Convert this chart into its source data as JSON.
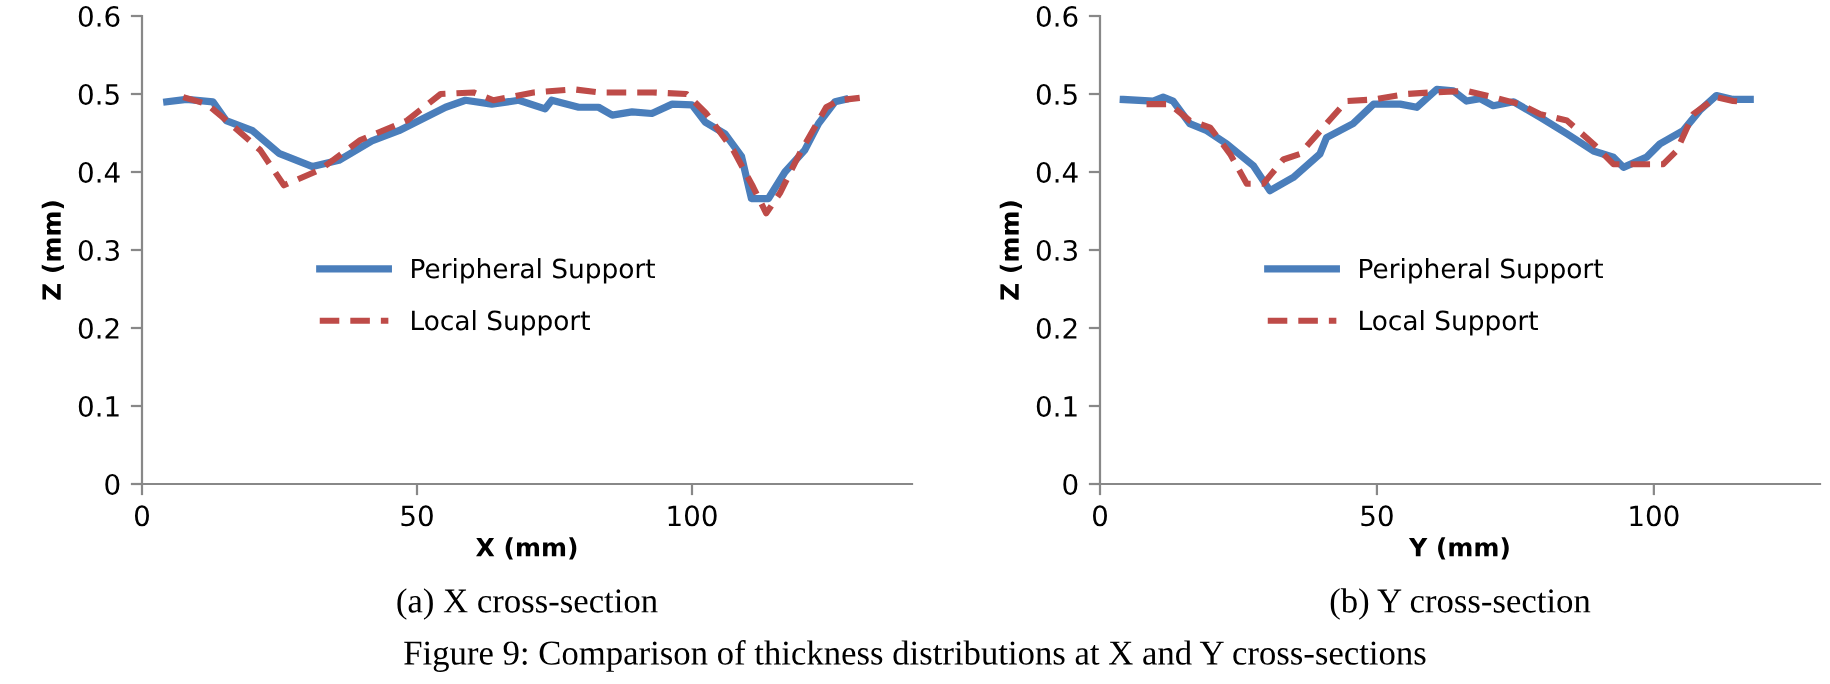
{
  "chart_data": [
    {
      "type": "line",
      "xlabel": "X (mm)",
      "ylabel": "Z (mm)",
      "xlim": [
        0,
        140
      ],
      "xticks": [
        0,
        50,
        100
      ],
      "ylim": [
        0,
        0.6
      ],
      "yticks": [
        0,
        0.1,
        0.2,
        0.3,
        0.4,
        0.5,
        0.6
      ],
      "grid": false,
      "legend": "left",
      "marker": "none",
      "annotations": [
        "(a) X cross-section",
        "Figure 9: Comparison of thickness distributions at X and Y cross-sections"
      ],
      "series": [
        {
          "name": "Peripheral Support",
          "color": "#4a7ebb",
          "line_style": "solid",
          "x": [
            4.5,
            8.1,
            12.9,
            15.3,
            20.1,
            24.9,
            31,
            35.8,
            41.8,
            46.7,
            55.2,
            58.8,
            63.6,
            68.5,
            73.3,
            74.5,
            79.4,
            83,
            85.5,
            89.1,
            92.7,
            96.4,
            100,
            102.4,
            106,
            109,
            110.8,
            113.9,
            116.9,
            120.5,
            123,
            126,
            127.8
          ],
          "values": [
            0.49,
            0.493,
            0.49,
            0.466,
            0.453,
            0.424,
            0.407,
            0.415,
            0.44,
            0.453,
            0.483,
            0.492,
            0.487,
            0.492,
            0.481,
            0.492,
            0.483,
            0.483,
            0.473,
            0.477,
            0.475,
            0.487,
            0.486,
            0.464,
            0.449,
            0.42,
            0.366,
            0.366,
            0.4,
            0.428,
            0.462,
            0.49,
            0.493
          ]
        },
        {
          "name": "Local Support",
          "color": "#be4b48",
          "line_style": "dashed",
          "x": [
            7.5,
            11.8,
            16.7,
            21.5,
            25.8,
            32.4,
            39.7,
            48.2,
            54.3,
            60.3,
            63.9,
            71.2,
            78.5,
            83.3,
            92.9,
            99,
            102.6,
            107.5,
            111.1,
            113.5,
            116,
            119.6,
            124.4,
            126.8,
            130.5
          ],
          "values": [
            0.496,
            0.487,
            0.458,
            0.428,
            0.383,
            0.403,
            0.441,
            0.466,
            0.5,
            0.502,
            0.492,
            0.502,
            0.506,
            0.502,
            0.502,
            0.5,
            0.475,
            0.428,
            0.381,
            0.347,
            0.373,
            0.424,
            0.483,
            0.492,
            0.495
          ]
        }
      ]
    },
    {
      "type": "line",
      "xlabel": "Y (mm)",
      "ylabel": "Z (mm)",
      "xlim": [
        0,
        130
      ],
      "xticks": [
        0,
        50,
        100
      ],
      "ylim": [
        0,
        0.6
      ],
      "yticks": [
        0,
        0.1,
        0.2,
        0.3,
        0.4,
        0.5,
        0.6
      ],
      "grid": false,
      "legend": "left",
      "marker": "none",
      "annotations": [
        "(b) Y cross-section"
      ],
      "series": [
        {
          "name": "Peripheral Support",
          "color": "#4a7ebb",
          "line_style": "solid",
          "x": [
            4.2,
            9.6,
            11.4,
            13.2,
            16.2,
            19.3,
            22.9,
            27.7,
            30.7,
            34.9,
            39.7,
            40.9,
            45.7,
            49.4,
            54.2,
            57.2,
            60.8,
            63.8,
            66.2,
            68.6,
            71,
            74.7,
            79.5,
            84.3,
            89.1,
            92.7,
            94.5,
            98.7,
            101.1,
            105.3,
            108.3,
            111.3,
            114.3,
            117.4
          ],
          "values": [
            0.493,
            0.491,
            0.496,
            0.491,
            0.462,
            0.453,
            0.436,
            0.408,
            0.376,
            0.393,
            0.423,
            0.444,
            0.462,
            0.487,
            0.487,
            0.483,
            0.506,
            0.504,
            0.491,
            0.494,
            0.485,
            0.49,
            0.47,
            0.449,
            0.427,
            0.419,
            0.406,
            0.419,
            0.436,
            0.453,
            0.479,
            0.498,
            0.493,
            0.493
          ]
        },
        {
          "name": "Local Support",
          "color": "#be4b48",
          "line_style": "dashed",
          "x": [
            8.4,
            12.6,
            16.2,
            19.9,
            23.5,
            26.5,
            29.5,
            33.1,
            36.1,
            40.9,
            44.5,
            49.4,
            55.4,
            59.6,
            66.2,
            71,
            75.8,
            79.5,
            84.3,
            89.1,
            92.7,
            96.9,
            101.7,
            104.1,
            107.1,
            111.3,
            114.3,
            116.2
          ],
          "values": [
            0.487,
            0.487,
            0.466,
            0.457,
            0.423,
            0.385,
            0.385,
            0.416,
            0.423,
            0.462,
            0.491,
            0.493,
            0.5,
            0.502,
            0.504,
            0.496,
            0.487,
            0.474,
            0.466,
            0.436,
            0.41,
            0.41,
            0.41,
            0.427,
            0.474,
            0.496,
            0.491,
            0.49
          ]
        }
      ]
    }
  ]
}
